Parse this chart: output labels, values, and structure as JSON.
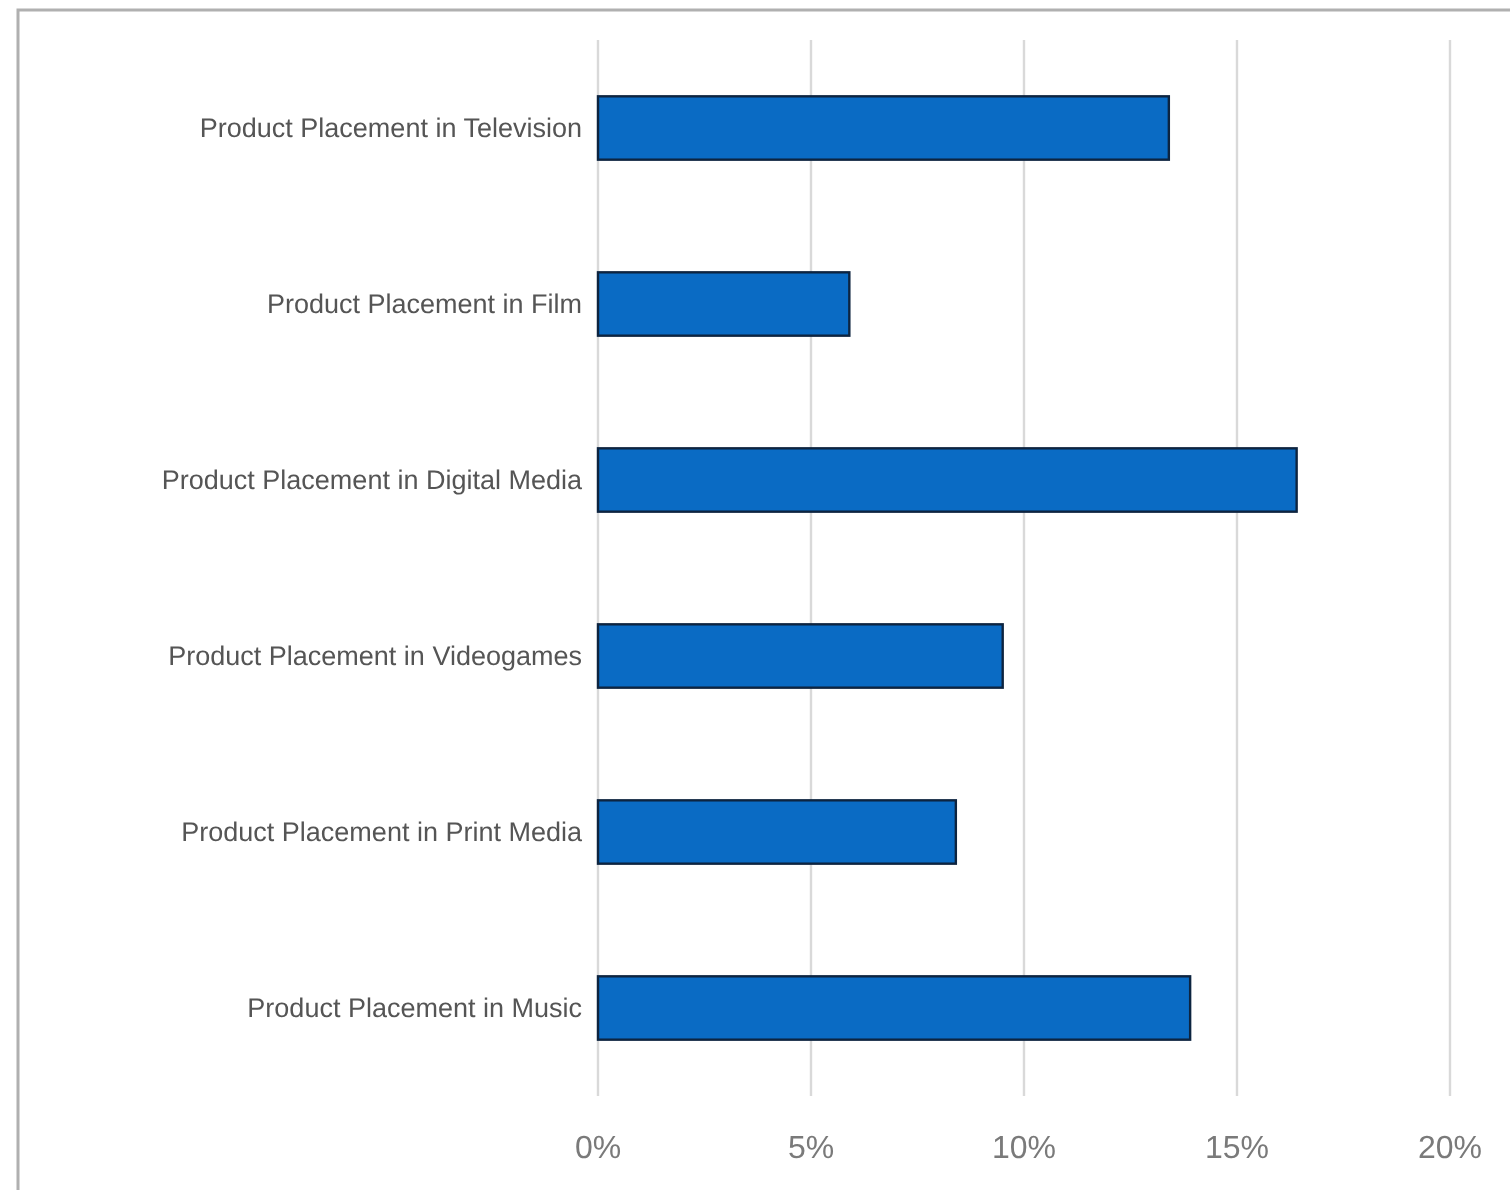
{
  "chart_data": {
    "type": "bar",
    "orientation": "horizontal",
    "categories": [
      "Product Placement in Television",
      "Product Placement in Film",
      "Product Placement in Digital Media",
      "Product Placement in Videogames",
      "Product Placement in Print Media",
      "Product Placement in Music"
    ],
    "values": [
      13.4,
      5.9,
      16.4,
      9.5,
      8.4,
      13.9
    ],
    "color": "#0a6bc4",
    "xlim": [
      0,
      20
    ],
    "xticks": [
      {
        "value": 0,
        "label": "0%"
      },
      {
        "value": 5,
        "label": "5%"
      },
      {
        "value": 10,
        "label": "10%"
      },
      {
        "value": 15,
        "label": "15%"
      },
      {
        "value": 20,
        "label": "20%"
      }
    ],
    "grid": "x"
  }
}
